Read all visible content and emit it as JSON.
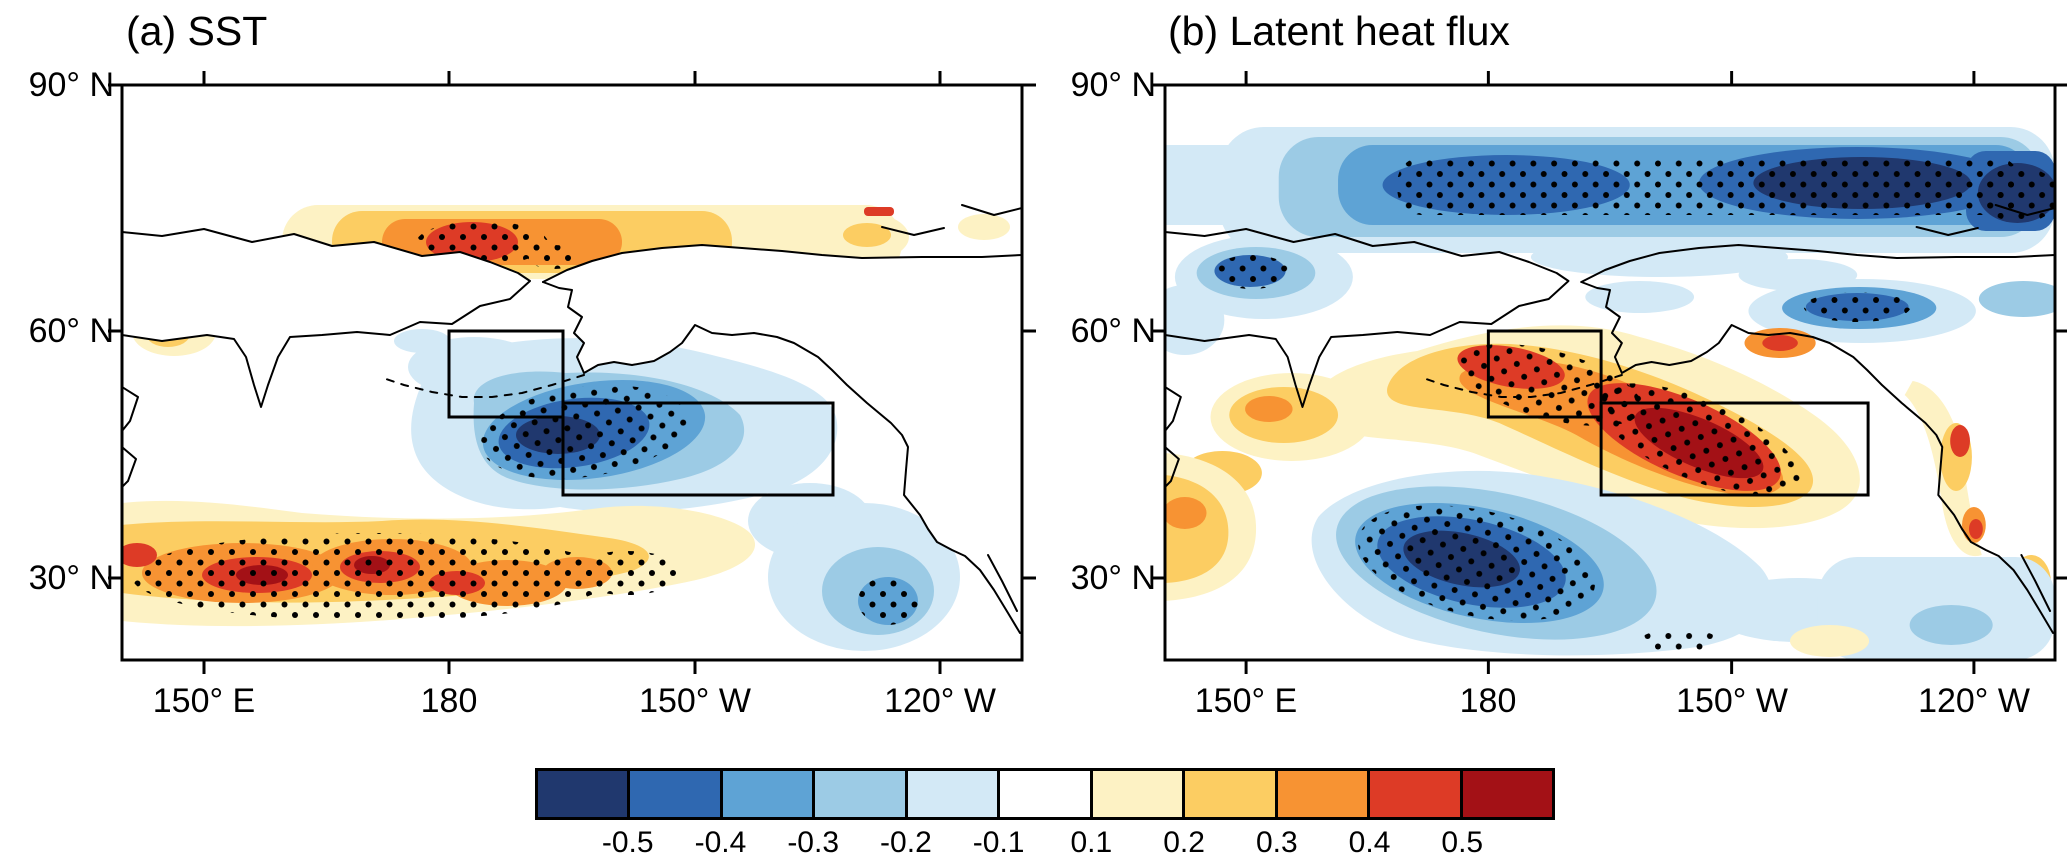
{
  "figure": {
    "panels": [
      {
        "title": "(a) SST",
        "y_ticks": [
          "90° N",
          "60° N",
          "30° N"
        ],
        "x_ticks": [
          "150° E",
          "180",
          "150° W",
          "120° W"
        ]
      },
      {
        "title": "(b) Latent heat flux",
        "y_ticks": [
          "90° N",
          "60° N",
          "30° N"
        ],
        "x_ticks": [
          "150° E",
          "180",
          "150° W",
          "120° W"
        ]
      }
    ],
    "colorbar": {
      "labels": [
        "-0.5",
        "-0.4",
        "-0.3",
        "-0.2",
        "-0.1",
        "0.1",
        "0.2",
        "0.3",
        "0.4",
        "0.5"
      ],
      "colors": [
        "#20386e",
        "#2f68b1",
        "#5ea3d5",
        "#9ccbe5",
        "#d3e9f6",
        "#ffffff",
        "#fdf2c4",
        "#fccd62",
        "#f79333",
        "#dd3b26",
        "#a31116"
      ]
    }
  },
  "chart_data": [
    {
      "type": "heatmap",
      "subtype": "filled-contour-map",
      "title": "(a) SST",
      "x_tick_labels": [
        "150° E",
        "180",
        "150° W",
        "120° W"
      ],
      "y_tick_labels": [
        "90° N",
        "60° N",
        "30° N"
      ],
      "lon_range": [
        "140° E",
        "110° W"
      ],
      "lat_range": [
        "20° N",
        "90° N"
      ],
      "shading_levels": [
        -0.5,
        -0.4,
        -0.3,
        -0.2,
        -0.1,
        0.1,
        0.2,
        0.3,
        0.4,
        0.5
      ],
      "stippling": "black dots overlaid on strongly shaded regions",
      "features": [
        {
          "region": "Arctic coastal band ~68-76N, 160E-120W",
          "sign": "positive",
          "approx_value": "0.1 to 0.5",
          "stippled": true
        },
        {
          "region": "Central North Pacific ~40-52N, 175E-135W",
          "sign": "negative",
          "approx_value": "-0.1 to -0.5",
          "stippled": true
        },
        {
          "region": "Western subtropical Pacific band ~25-35N, 140E-165W",
          "sign": "positive",
          "approx_value": "0.1 to beyond 0.5",
          "stippled": true
        },
        {
          "region": "Off Baja California ~22-30N, 122-112W",
          "sign": "negative",
          "approx_value": "-0.1 to -0.3",
          "stippled": true
        }
      ],
      "boxes": [
        {
          "name": "western box",
          "lon": "180 to 166W",
          "lat": "50N to 60N"
        },
        {
          "name": "eastern box",
          "lon": "166W to 133W",
          "lat": "40N to 51N"
        }
      ]
    },
    {
      "type": "heatmap",
      "subtype": "filled-contour-map",
      "title": "(b) Latent heat flux",
      "x_tick_labels": [
        "150° E",
        "180",
        "150° W",
        "120° W"
      ],
      "y_tick_labels": [
        "90° N",
        "60° N",
        "30° N"
      ],
      "lon_range": [
        "140° E",
        "110° W"
      ],
      "lat_range": [
        "20° N",
        "90° N"
      ],
      "shading_levels": [
        -0.5,
        -0.4,
        -0.3,
        -0.2,
        -0.1,
        0.1,
        0.2,
        0.3,
        0.4,
        0.5
      ],
      "stippling": "black dots overlaid on strongly shaded regions",
      "features": [
        {
          "region": "Arctic band ~76-86N across the panel",
          "sign": "negative",
          "approx_value": "-0.2 to beyond -0.5",
          "stippled": true
        },
        {
          "region": "Diagonal band from Bering Sea ~60N,180 to ~40N,140W through the study boxes",
          "sign": "positive",
          "approx_value": "0.2 to beyond 0.5",
          "stippled": true
        },
        {
          "region": "Subtropical central Pacific ~22-36N, 160E-170W",
          "sign": "negative",
          "approx_value": "-0.2 to beyond -0.5",
          "stippled": true
        },
        {
          "region": "Subpolar patches near 65N,150E and 60-64N,140-125W",
          "sign": "negative",
          "approx_value": "-0.3 to -0.5",
          "stippled": true
        },
        {
          "region": "East Asian margin ~25-40N near 140-150E",
          "sign": "positive",
          "approx_value": "0.2 to 0.4",
          "stippled": false
        },
        {
          "region": "North American coast ~35-55N",
          "sign": "positive",
          "approx_value": "0.1 to 0.4",
          "stippled": false
        }
      ],
      "boxes": [
        {
          "name": "western box",
          "lon": "180 to 166W",
          "lat": "50N to 60N"
        },
        {
          "name": "eastern box",
          "lon": "166W to 133W",
          "lat": "40N to 51N"
        }
      ]
    }
  ]
}
